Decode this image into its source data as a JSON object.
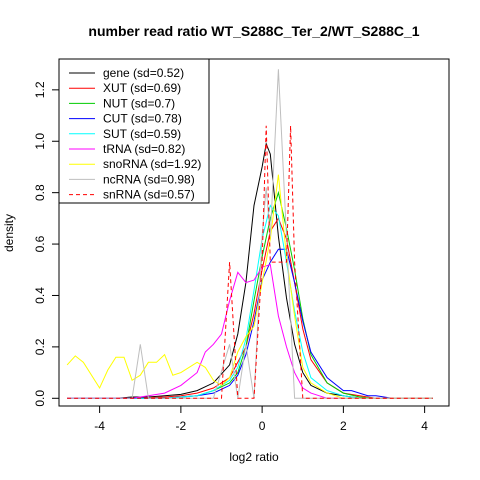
{
  "chart_data": {
    "type": "line",
    "title": "number read ratio WT_S288C_Ter_2/WT_S288C_1",
    "xlabel": "log2 ratio",
    "ylabel": "density",
    "xlim": [
      -5.0,
      4.6
    ],
    "ylim": [
      -0.03,
      1.32
    ],
    "x_ticks": [
      -4,
      -2,
      0,
      2,
      4
    ],
    "x_tick_labels": [
      "-4",
      "-2",
      "0",
      "2",
      "4"
    ],
    "y_ticks": [
      0.0,
      0.2,
      0.4,
      0.6,
      0.8,
      1.0,
      1.2
    ],
    "y_tick_labels": [
      "0.0",
      "0.2",
      "0.4",
      "0.6",
      "0.8",
      "1.0",
      "1.2"
    ],
    "grid": false,
    "legend_position": "top-left",
    "series": [
      {
        "name": "gene (sd=0.52)",
        "color": "#000000",
        "dash": "solid",
        "x": [
          -4.8,
          -4.4,
          -4.0,
          -3.6,
          -3.2,
          -2.8,
          -2.4,
          -2.0,
          -1.6,
          -1.2,
          -0.8,
          -0.6,
          -0.4,
          -0.2,
          0.0,
          0.1,
          0.2,
          0.4,
          0.6,
          0.8,
          1.0,
          1.2,
          1.6,
          2.0,
          2.4,
          2.8,
          3.2,
          3.6,
          4.2
        ],
        "y": [
          0.0,
          0.0,
          0.0,
          0.0,
          0.005,
          0.005,
          0.01,
          0.015,
          0.03,
          0.06,
          0.13,
          0.25,
          0.45,
          0.75,
          0.9,
          0.99,
          0.95,
          0.63,
          0.39,
          0.21,
          0.1,
          0.05,
          0.02,
          0.01,
          0.0,
          0.0,
          0.0,
          0.0,
          0.0
        ]
      },
      {
        "name": "XUT (sd=0.69)",
        "color": "#ff0000",
        "dash": "solid",
        "x": [
          -4.8,
          -4.0,
          -3.2,
          -2.4,
          -2.0,
          -1.6,
          -1.2,
          -0.8,
          -0.4,
          -0.2,
          0.0,
          0.2,
          0.4,
          0.6,
          0.8,
          1.0,
          1.2,
          1.6,
          2.0,
          2.4,
          2.8,
          3.2,
          4.2
        ],
        "y": [
          0.0,
          0.0,
          0.0,
          0.005,
          0.01,
          0.02,
          0.04,
          0.08,
          0.2,
          0.33,
          0.5,
          0.65,
          0.7,
          0.62,
          0.45,
          0.27,
          0.15,
          0.06,
          0.02,
          0.01,
          0.0,
          0.0,
          0.0
        ]
      },
      {
        "name": "NUT (sd=0.7)",
        "color": "#00cc00",
        "dash": "solid",
        "x": [
          -4.8,
          -4.0,
          -3.2,
          -2.4,
          -2.0,
          -1.6,
          -1.2,
          -0.8,
          -0.6,
          -0.4,
          -0.2,
          0.0,
          0.2,
          0.4,
          0.6,
          0.8,
          1.0,
          1.2,
          1.6,
          2.0,
          2.4,
          2.8,
          3.2,
          4.2
        ],
        "y": [
          0.0,
          0.0,
          0.0,
          0.0,
          0.005,
          0.01,
          0.03,
          0.06,
          0.1,
          0.2,
          0.38,
          0.55,
          0.7,
          0.8,
          0.66,
          0.5,
          0.31,
          0.17,
          0.06,
          0.02,
          0.005,
          0.0,
          0.0,
          0.0
        ]
      },
      {
        "name": "CUT (sd=0.78)",
        "color": "#0000ff",
        "dash": "solid",
        "x": [
          -4.8,
          -4.0,
          -3.2,
          -2.4,
          -2.0,
          -1.6,
          -1.2,
          -0.8,
          -0.6,
          -0.4,
          -0.2,
          0.0,
          0.2,
          0.4,
          0.6,
          0.8,
          1.0,
          1.2,
          1.6,
          2.0,
          2.2,
          2.6,
          2.8,
          3.2,
          4.2
        ],
        "y": [
          0.0,
          0.0,
          0.0,
          0.0,
          0.005,
          0.01,
          0.02,
          0.05,
          0.09,
          0.17,
          0.3,
          0.46,
          0.53,
          0.58,
          0.58,
          0.45,
          0.3,
          0.18,
          0.08,
          0.03,
          0.03,
          0.01,
          0.01,
          0.0,
          0.0
        ]
      },
      {
        "name": "SUT (sd=0.59)",
        "color": "#00ffff",
        "dash": "solid",
        "x": [
          -4.8,
          -4.0,
          -3.2,
          -2.4,
          -2.0,
          -1.6,
          -1.2,
          -0.8,
          -0.6,
          -0.4,
          -0.2,
          0.0,
          0.2,
          0.4,
          0.6,
          0.8,
          1.0,
          1.2,
          1.6,
          2.0,
          2.4,
          2.8,
          3.2,
          4.2
        ],
        "y": [
          0.0,
          0.0,
          0.0,
          0.0,
          0.005,
          0.01,
          0.03,
          0.07,
          0.12,
          0.23,
          0.42,
          0.62,
          0.75,
          0.71,
          0.53,
          0.34,
          0.18,
          0.08,
          0.03,
          0.01,
          0.0,
          0.0,
          0.0,
          0.0
        ]
      },
      {
        "name": "tRNA (sd=0.82)",
        "color": "#ff00ff",
        "dash": "solid",
        "x": [
          -4.8,
          -4.0,
          -3.2,
          -2.8,
          -2.4,
          -2.0,
          -1.6,
          -1.4,
          -1.2,
          -1.0,
          -0.8,
          -0.6,
          -0.4,
          -0.2,
          0.0,
          0.2,
          0.4,
          0.6,
          0.8,
          1.0,
          1.2,
          1.6,
          2.0,
          2.4,
          2.8,
          3.2,
          4.2
        ],
        "y": [
          0.0,
          0.0,
          0.0,
          0.01,
          0.02,
          0.05,
          0.1,
          0.18,
          0.21,
          0.25,
          0.38,
          0.49,
          0.45,
          0.46,
          0.51,
          0.52,
          0.32,
          0.2,
          0.1,
          0.04,
          0.02,
          0.0,
          0.0,
          0.0,
          0.0,
          0.0,
          0.0
        ]
      },
      {
        "name": "snoRNA (sd=1.92)",
        "color": "#ffff00",
        "dash": "solid",
        "x": [
          -4.8,
          -4.6,
          -4.4,
          -4.0,
          -3.8,
          -3.6,
          -3.4,
          -3.2,
          -3.0,
          -2.8,
          -2.6,
          -2.4,
          -2.2,
          -2.0,
          -1.8,
          -1.6,
          -1.4,
          -1.2,
          -1.0,
          -0.8,
          -0.6,
          -0.4,
          -0.2,
          0.0,
          0.2,
          0.4,
          0.6,
          0.8,
          1.0,
          1.2,
          1.6,
          2.0,
          2.4,
          2.8,
          3.2,
          4.2
        ],
        "y": [
          0.13,
          0.165,
          0.14,
          0.04,
          0.11,
          0.16,
          0.16,
          0.07,
          0.09,
          0.14,
          0.14,
          0.17,
          0.09,
          0.1,
          0.12,
          0.14,
          0.12,
          0.07,
          0.05,
          0.08,
          0.18,
          0.24,
          0.28,
          0.45,
          0.62,
          0.87,
          0.55,
          0.32,
          0.12,
          0.06,
          0.02,
          0.0,
          0.0,
          0.0,
          0.0,
          0.0
        ]
      },
      {
        "name": "ncRNA (sd=0.98)",
        "color": "#bebebe",
        "dash": "solid",
        "x": [
          -4.8,
          -4.0,
          -3.6,
          -3.2,
          -3.0,
          -2.8,
          -2.4,
          -2.0,
          -1.6,
          -1.2,
          -0.8,
          -0.6,
          -0.4,
          -0.2,
          0.0,
          0.1,
          0.2,
          0.4,
          0.6,
          0.8,
          1.0,
          1.6,
          2.0,
          3.2,
          4.2
        ],
        "y": [
          0.0,
          0.0,
          0.0,
          0.0,
          0.21,
          0.0,
          0.0,
          0.0,
          0.0,
          0.0,
          0.21,
          0.0,
          0.21,
          0.0,
          0.63,
          0.82,
          0.63,
          1.28,
          0.63,
          0.0,
          0.0,
          0.0,
          0.0,
          0.0,
          0.0
        ]
      },
      {
        "name": "snRNA (sd=0.57)",
        "color": "#ff0000",
        "dash": "dashed",
        "x": [
          -4.8,
          -4.0,
          -3.2,
          -2.4,
          -1.6,
          -1.2,
          -1.0,
          -0.8,
          -0.6,
          -0.4,
          -0.2,
          0.0,
          0.1,
          0.2,
          0.4,
          0.6,
          0.7,
          0.8,
          1.0,
          1.6,
          2.4,
          3.2,
          4.2
        ],
        "y": [
          0.0,
          0.0,
          0.0,
          0.0,
          0.0,
          0.0,
          0.0,
          0.53,
          0.0,
          0.0,
          0.0,
          0.53,
          1.06,
          0.53,
          0.53,
          0.53,
          1.06,
          0.53,
          0.0,
          0.0,
          0.0,
          0.0,
          0.0
        ]
      }
    ]
  }
}
